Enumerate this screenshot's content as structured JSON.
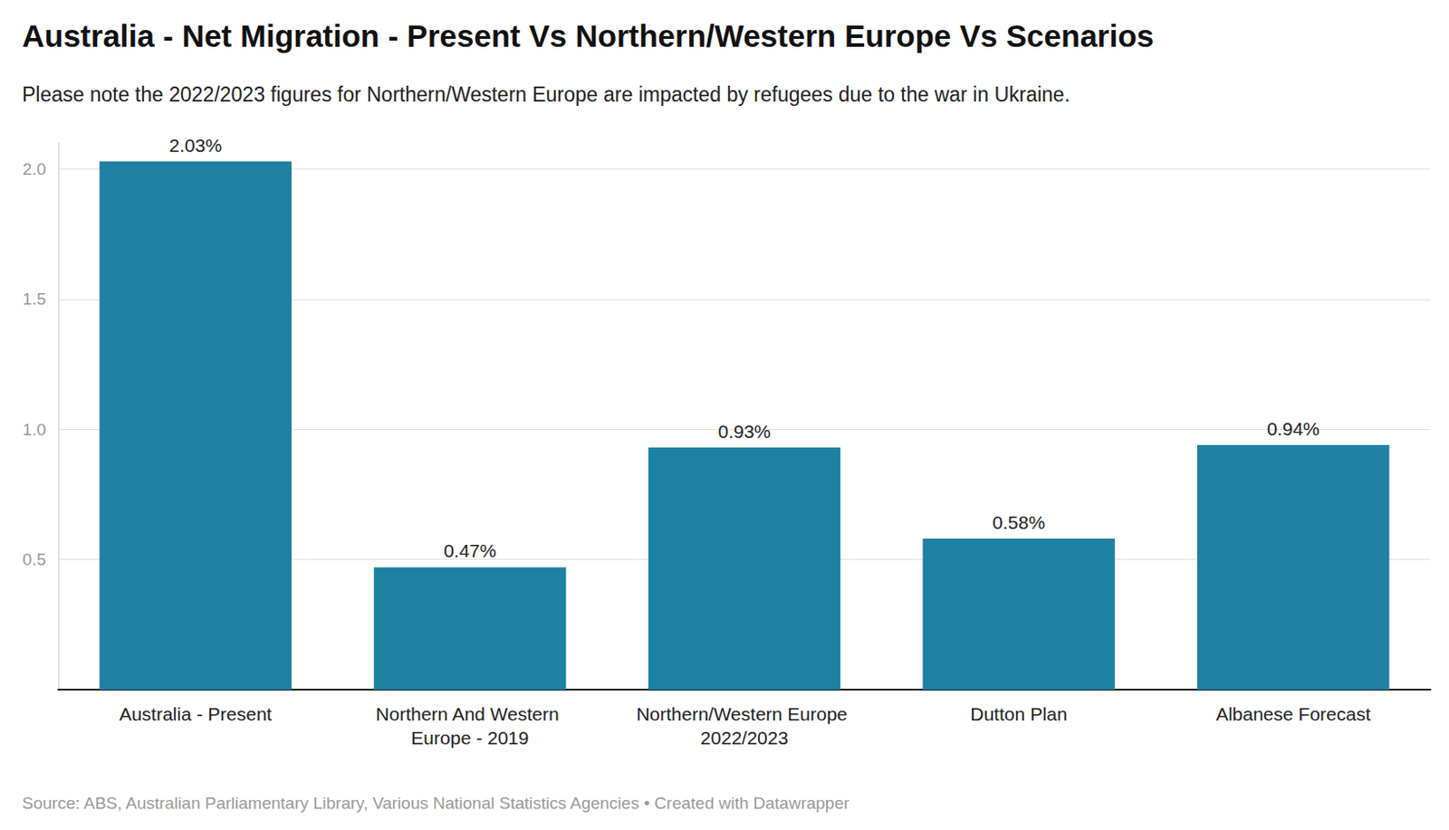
{
  "chart_data": {
    "type": "bar",
    "title": "Australia - Net Migration - Present Vs Northern/Western Europe Vs Scenarios",
    "subtitle": "Please note the 2022/2023 figures for Northern/Western Europe are impacted by refugees due to the war in Ukraine.",
    "source": "Source: ABS, Australian Parliamentary Library, Various National Statistics Agencies • Created with Datawrapper",
    "categories": [
      "Australia - Present",
      "Northern And Western Europe - 2019",
      "Northern/Western Europe 2022/2023",
      "Dutton Plan",
      "Albanese Forecast"
    ],
    "values": [
      2.03,
      0.47,
      0.93,
      0.58,
      0.94
    ],
    "value_labels": [
      "2.03%",
      "0.47%",
      "0.93%",
      "0.58%",
      "0.94%"
    ],
    "color": "#1d81a2",
    "ylim": [
      0,
      2.1
    ],
    "yticks": [
      0.5,
      {
        "value": 1,
        "label": "1.0"
      },
      1.5,
      {
        "value": 2,
        "label": "2.0"
      }
    ],
    "grid": true,
    "data_labels": true
  }
}
